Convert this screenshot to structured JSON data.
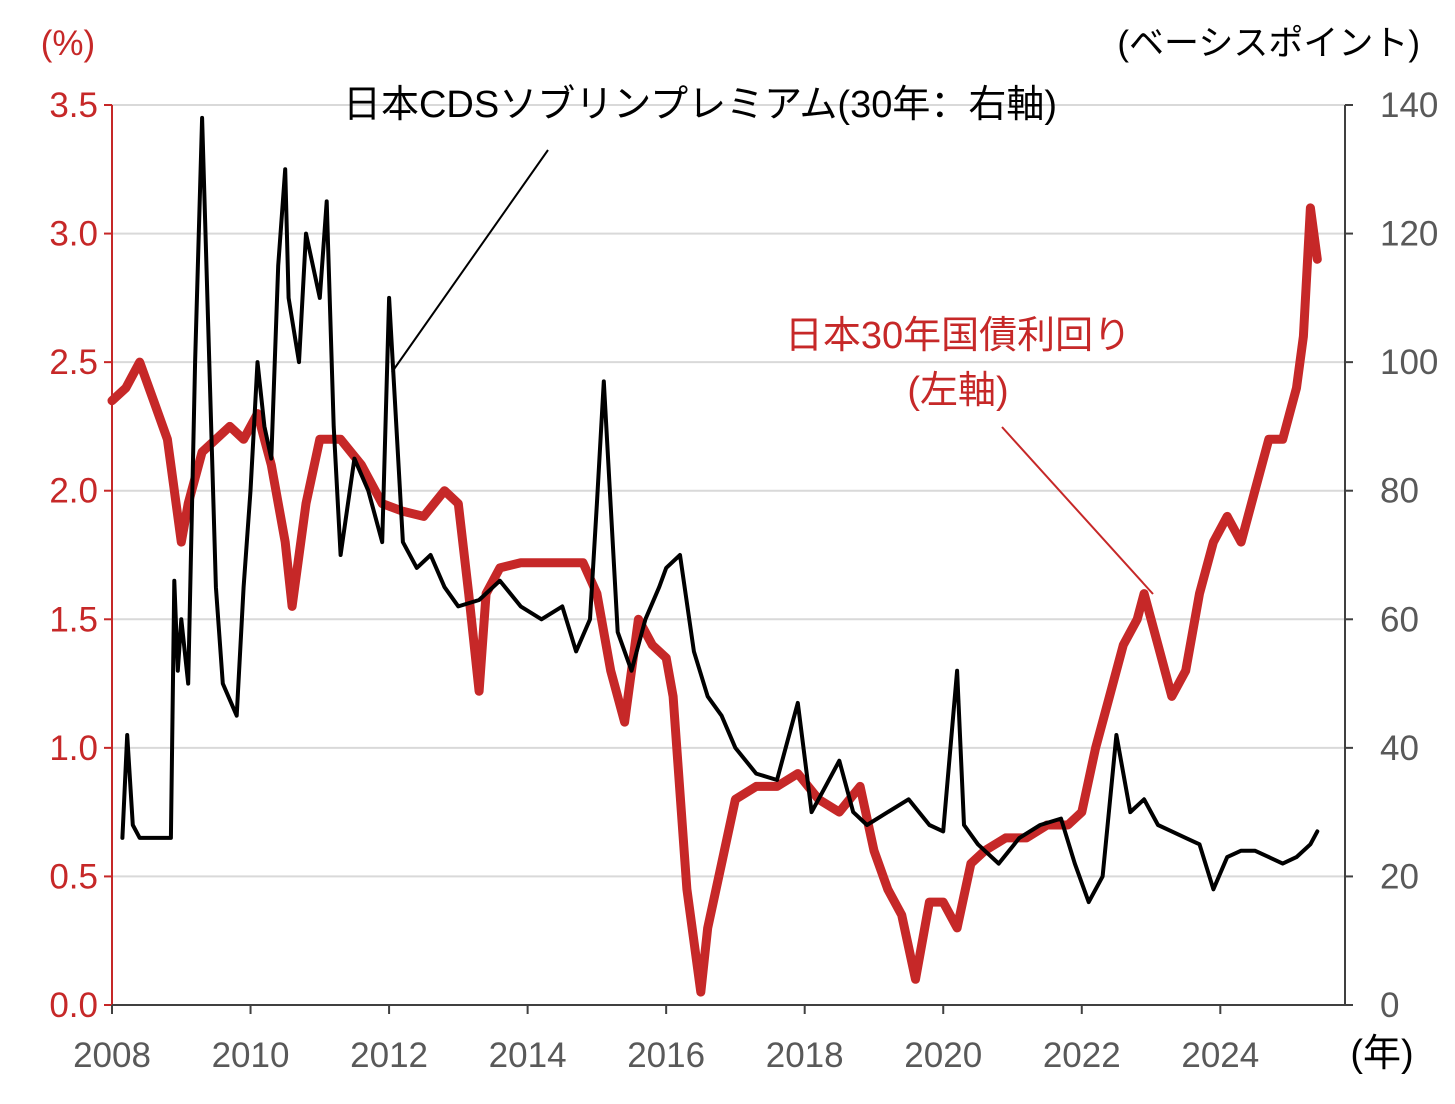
{
  "chart_data": {
    "type": "line",
    "title": "",
    "x_unit_label": "(年)",
    "x_ticks": [
      "2008",
      "2010",
      "2012",
      "2014",
      "2016",
      "2018",
      "2020",
      "2022",
      "2024"
    ],
    "xlim": [
      2008.0,
      2025.8
    ],
    "y_left": {
      "unit_label": "(%)",
      "ylim": [
        0.0,
        3.5
      ],
      "ticks": [
        "0.0",
        "0.5",
        "1.0",
        "1.5",
        "2.0",
        "2.5",
        "3.0",
        "3.5"
      ],
      "color": "#c62828"
    },
    "y_right": {
      "unit_label": "(ベーシスポイント)",
      "ylim": [
        0,
        140
      ],
      "ticks": [
        "0",
        "20",
        "40",
        "60",
        "80",
        "100",
        "120",
        "140"
      ],
      "color": "#595959"
    },
    "grid": true,
    "series": [
      {
        "name": "日本30年国債利回り",
        "axis": "left",
        "color": "#c62828",
        "x": [
          2008.0,
          2008.2,
          2008.4,
          2008.6,
          2008.8,
          2009.0,
          2009.1,
          2009.3,
          2009.5,
          2009.7,
          2009.9,
          2010.1,
          2010.3,
          2010.5,
          2010.6,
          2010.8,
          2011.0,
          2011.3,
          2011.6,
          2011.9,
          2012.2,
          2012.5,
          2012.8,
          2013.0,
          2013.15,
          2013.3,
          2013.4,
          2013.6,
          2013.9,
          2014.2,
          2014.5,
          2014.8,
          2015.0,
          2015.2,
          2015.4,
          2015.6,
          2015.8,
          2016.0,
          2016.1,
          2016.3,
          2016.5,
          2016.6,
          2016.8,
          2017.0,
          2017.3,
          2017.6,
          2017.9,
          2018.2,
          2018.5,
          2018.8,
          2019.0,
          2019.2,
          2019.4,
          2019.6,
          2019.8,
          2020.0,
          2020.2,
          2020.4,
          2020.6,
          2020.9,
          2021.2,
          2021.5,
          2021.8,
          2022.0,
          2022.2,
          2022.4,
          2022.6,
          2022.8,
          2022.9,
          2023.1,
          2023.3,
          2023.5,
          2023.7,
          2023.9,
          2024.1,
          2024.3,
          2024.5,
          2024.7,
          2024.9,
          2025.0,
          2025.1,
          2025.2,
          2025.3,
          2025.4
        ],
        "values": [
          2.35,
          2.4,
          2.5,
          2.35,
          2.2,
          1.8,
          1.95,
          2.15,
          2.2,
          2.25,
          2.2,
          2.3,
          2.1,
          1.8,
          1.55,
          1.95,
          2.2,
          2.2,
          2.1,
          1.95,
          1.92,
          1.9,
          2.0,
          1.95,
          1.6,
          1.22,
          1.6,
          1.7,
          1.72,
          1.72,
          1.72,
          1.72,
          1.6,
          1.3,
          1.1,
          1.5,
          1.4,
          1.35,
          1.2,
          0.45,
          0.05,
          0.3,
          0.55,
          0.8,
          0.85,
          0.85,
          0.9,
          0.8,
          0.75,
          0.85,
          0.6,
          0.45,
          0.35,
          0.1,
          0.4,
          0.4,
          0.3,
          0.55,
          0.6,
          0.65,
          0.65,
          0.7,
          0.7,
          0.75,
          1.0,
          1.2,
          1.4,
          1.5,
          1.6,
          1.4,
          1.2,
          1.3,
          1.6,
          1.8,
          1.9,
          1.8,
          2.0,
          2.2,
          2.2,
          2.3,
          2.4,
          2.6,
          3.1,
          2.9
        ]
      },
      {
        "name": "日本CDSソブリンプレミアム(30年：右軸)",
        "axis": "right",
        "color": "#000000",
        "x": [
          2008.15,
          2008.22,
          2008.3,
          2008.4,
          2008.6,
          2008.85,
          2008.9,
          2008.95,
          2009.0,
          2009.1,
          2009.2,
          2009.3,
          2009.5,
          2009.6,
          2009.8,
          2009.9,
          2010.0,
          2010.1,
          2010.2,
          2010.3,
          2010.4,
          2010.5,
          2010.55,
          2010.7,
          2010.8,
          2011.0,
          2011.1,
          2011.2,
          2011.3,
          2011.5,
          2011.7,
          2011.9,
          2012.0,
          2012.2,
          2012.4,
          2012.6,
          2012.8,
          2013.0,
          2013.3,
          2013.6,
          2013.9,
          2014.2,
          2014.5,
          2014.7,
          2014.9,
          2015.0,
          2015.1,
          2015.3,
          2015.5,
          2015.7,
          2015.9,
          2016.0,
          2016.2,
          2016.4,
          2016.6,
          2016.8,
          2017.0,
          2017.3,
          2017.6,
          2017.9,
          2018.1,
          2018.3,
          2018.5,
          2018.7,
          2018.9,
          2019.2,
          2019.5,
          2019.8,
          2020.0,
          2020.2,
          2020.3,
          2020.5,
          2020.8,
          2021.1,
          2021.4,
          2021.7,
          2021.9,
          2022.1,
          2022.3,
          2022.5,
          2022.7,
          2022.9,
          2023.1,
          2023.3,
          2023.5,
          2023.7,
          2023.9,
          2024.1,
          2024.3,
          2024.5,
          2024.7,
          2024.9,
          2025.1,
          2025.3,
          2025.4
        ],
        "values": [
          26,
          42,
          28,
          26,
          26,
          26,
          66,
          52,
          60,
          50,
          100,
          138,
          65,
          50,
          45,
          65,
          80,
          100,
          90,
          85,
          115,
          130,
          110,
          100,
          120,
          110,
          125,
          90,
          70,
          85,
          80,
          72,
          110,
          72,
          68,
          70,
          65,
          62,
          63,
          66,
          62,
          60,
          62,
          55,
          60,
          78,
          97,
          58,
          52,
          60,
          65,
          68,
          70,
          55,
          48,
          45,
          40,
          36,
          35,
          47,
          30,
          34,
          38,
          30,
          28,
          30,
          32,
          28,
          27,
          52,
          28,
          25,
          22,
          26,
          28,
          29,
          22,
          16,
          20,
          42,
          30,
          32,
          28,
          27,
          26,
          25,
          18,
          23,
          24,
          24,
          23,
          22,
          23,
          25,
          27
        ]
      }
    ],
    "annotations": [
      {
        "lines": [
          "日本CDSソブリンプレミアム(30年：右軸)"
        ],
        "color": "#000000"
      },
      {
        "lines": [
          "日本30年国債利回り",
          "(左軸)"
        ],
        "color": "#c62828"
      }
    ]
  }
}
